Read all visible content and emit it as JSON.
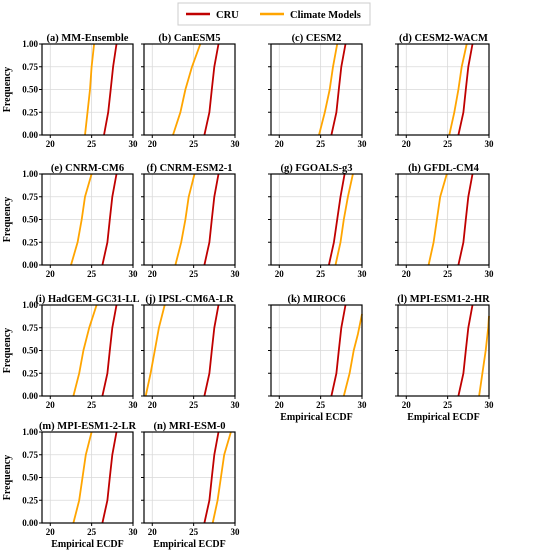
{
  "legend": {
    "entries": [
      {
        "label": "CRU",
        "color": "#c00000"
      },
      {
        "label": "Climate Models",
        "color": "#ffa500"
      }
    ]
  },
  "axes": {
    "ylabel": "Frequency",
    "xlabel": "Empirical ECDF",
    "xticks": [
      "20",
      "25",
      "30"
    ],
    "yticks": [
      "0.00",
      "0.25",
      "0.50",
      "0.75",
      "1.00"
    ]
  },
  "chart_data": [
    {
      "type": "line",
      "title": "(a) MM-Ensemble",
      "xlim": [
        19,
        30
      ],
      "ylim": [
        0,
        1
      ],
      "series": [
        {
          "name": "CRU",
          "x": [
            26.5,
            27.0,
            27.3,
            27.6,
            28.0
          ],
          "y": [
            0,
            0.25,
            0.5,
            0.75,
            1.0
          ]
        },
        {
          "name": "Climate Models",
          "x": [
            24.2,
            24.5,
            24.8,
            25.0,
            25.3
          ],
          "y": [
            0,
            0.25,
            0.5,
            0.75,
            1.0
          ]
        }
      ]
    },
    {
      "type": "line",
      "title": "(b) CanESM5",
      "xlim": [
        19,
        30
      ],
      "ylim": [
        0,
        1
      ],
      "series": [
        {
          "name": "CRU",
          "x": [
            26.3,
            26.9,
            27.2,
            27.5,
            28.0
          ],
          "y": [
            0,
            0.25,
            0.5,
            0.75,
            1.0
          ]
        },
        {
          "name": "Climate Models",
          "x": [
            22.5,
            23.4,
            24.0,
            24.8,
            25.8
          ],
          "y": [
            0,
            0.25,
            0.5,
            0.75,
            1.0
          ]
        }
      ]
    },
    {
      "type": "line",
      "title": "(c) CESM2",
      "xlim": [
        19,
        30
      ],
      "ylim": [
        0,
        1
      ],
      "series": [
        {
          "name": "CRU",
          "x": [
            26.3,
            26.9,
            27.2,
            27.5,
            28.0
          ],
          "y": [
            0,
            0.25,
            0.5,
            0.75,
            1.0
          ]
        },
        {
          "name": "Climate Models",
          "x": [
            24.8,
            25.5,
            26.1,
            26.5,
            27.0
          ],
          "y": [
            0,
            0.25,
            0.5,
            0.75,
            1.0
          ]
        }
      ]
    },
    {
      "type": "line",
      "title": "(d) CESM2-WACM",
      "xlim": [
        19,
        30
      ],
      "ylim": [
        0,
        1
      ],
      "series": [
        {
          "name": "CRU",
          "x": [
            26.3,
            26.9,
            27.2,
            27.5,
            28.0
          ],
          "y": [
            0,
            0.25,
            0.5,
            0.75,
            1.0
          ]
        },
        {
          "name": "Climate Models",
          "x": [
            25.2,
            25.8,
            26.3,
            26.7,
            27.3
          ],
          "y": [
            0,
            0.25,
            0.5,
            0.75,
            1.0
          ]
        }
      ]
    },
    {
      "type": "line",
      "title": "(e) CNRM-CM6",
      "xlim": [
        19,
        30
      ],
      "ylim": [
        0,
        1
      ],
      "series": [
        {
          "name": "CRU",
          "x": [
            26.3,
            26.9,
            27.2,
            27.5,
            28.0
          ],
          "y": [
            0,
            0.25,
            0.5,
            0.75,
            1.0
          ]
        },
        {
          "name": "Climate Models",
          "x": [
            22.5,
            23.3,
            23.8,
            24.2,
            25.0
          ],
          "y": [
            0,
            0.25,
            0.5,
            0.75,
            1.0
          ]
        }
      ]
    },
    {
      "type": "line",
      "title": "(f) CNRM-ESM2-1",
      "xlim": [
        19,
        30
      ],
      "ylim": [
        0,
        1
      ],
      "series": [
        {
          "name": "CRU",
          "x": [
            26.3,
            26.9,
            27.2,
            27.5,
            28.0
          ],
          "y": [
            0,
            0.25,
            0.5,
            0.75,
            1.0
          ]
        },
        {
          "name": "Climate Models",
          "x": [
            22.8,
            23.5,
            24.0,
            24.4,
            25.1
          ],
          "y": [
            0,
            0.25,
            0.5,
            0.75,
            1.0
          ]
        }
      ]
    },
    {
      "type": "line",
      "title": "(g) FGOALS-g3",
      "xlim": [
        19,
        30
      ],
      "ylim": [
        0,
        1
      ],
      "series": [
        {
          "name": "CRU",
          "x": [
            26.0,
            26.6,
            27.0,
            27.4,
            27.9
          ],
          "y": [
            0,
            0.25,
            0.5,
            0.75,
            1.0
          ]
        },
        {
          "name": "Climate Models",
          "x": [
            26.8,
            27.4,
            27.8,
            28.3,
            28.9
          ],
          "y": [
            0,
            0.25,
            0.5,
            0.75,
            1.0
          ]
        }
      ]
    },
    {
      "type": "line",
      "title": "(h) GFDL-CM4",
      "xlim": [
        19,
        30
      ],
      "ylim": [
        0,
        1
      ],
      "series": [
        {
          "name": "CRU",
          "x": [
            26.3,
            26.9,
            27.2,
            27.5,
            28.0
          ],
          "y": [
            0,
            0.25,
            0.5,
            0.75,
            1.0
          ]
        },
        {
          "name": "Climate Models",
          "x": [
            22.7,
            23.3,
            23.7,
            24.1,
            24.9
          ],
          "y": [
            0,
            0.25,
            0.5,
            0.75,
            1.0
          ]
        }
      ]
    },
    {
      "type": "line",
      "title": "(i) HadGEM-GC31-LL",
      "xlim": [
        19,
        30
      ],
      "ylim": [
        0,
        1
      ],
      "series": [
        {
          "name": "CRU",
          "x": [
            26.3,
            26.9,
            27.2,
            27.5,
            28.0
          ],
          "y": [
            0,
            0.25,
            0.5,
            0.75,
            1.0
          ]
        },
        {
          "name": "Climate Models",
          "x": [
            22.8,
            23.5,
            24.0,
            24.7,
            25.6
          ],
          "y": [
            0,
            0.25,
            0.5,
            0.75,
            1.0
          ]
        }
      ]
    },
    {
      "type": "line",
      "title": "(j) IPSL-CM6A-LR",
      "xlim": [
        19,
        30
      ],
      "ylim": [
        0,
        1
      ],
      "series": [
        {
          "name": "CRU",
          "x": [
            26.3,
            26.9,
            27.2,
            27.5,
            28.0
          ],
          "y": [
            0,
            0.25,
            0.5,
            0.75,
            1.0
          ]
        },
        {
          "name": "Climate Models",
          "x": [
            19.2,
            19.8,
            20.3,
            20.8,
            21.5
          ],
          "y": [
            0,
            0.25,
            0.5,
            0.75,
            1.0
          ]
        }
      ]
    },
    {
      "type": "line",
      "title": "(k) MIROC6",
      "xlim": [
        19,
        30
      ],
      "ylim": [
        0,
        1
      ],
      "series": [
        {
          "name": "CRU",
          "x": [
            26.3,
            26.9,
            27.2,
            27.5,
            28.0
          ],
          "y": [
            0,
            0.25,
            0.5,
            0.75,
            1.0
          ]
        },
        {
          "name": "Climate Models",
          "x": [
            27.8,
            28.5,
            29.0,
            29.5,
            30.0
          ],
          "y": [
            0,
            0.25,
            0.5,
            0.68,
            0.9
          ]
        }
      ]
    },
    {
      "type": "line",
      "title": "(l) MPI-ESM1-2-HR",
      "xlim": [
        19,
        30
      ],
      "ylim": [
        0,
        1
      ],
      "series": [
        {
          "name": "CRU",
          "x": [
            26.3,
            26.9,
            27.2,
            27.5,
            28.0
          ],
          "y": [
            0,
            0.25,
            0.5,
            0.75,
            1.0
          ]
        },
        {
          "name": "Climate Models",
          "x": [
            28.8,
            29.2,
            29.6,
            29.9,
            30.0
          ],
          "y": [
            0,
            0.25,
            0.5,
            0.75,
            0.88
          ]
        }
      ]
    },
    {
      "type": "line",
      "title": "(m) MPI-ESM1-2-LR",
      "xlim": [
        19,
        30
      ],
      "ylim": [
        0,
        1
      ],
      "series": [
        {
          "name": "CRU",
          "x": [
            26.3,
            26.9,
            27.2,
            27.5,
            28.0
          ],
          "y": [
            0,
            0.25,
            0.5,
            0.75,
            1.0
          ]
        },
        {
          "name": "Climate Models",
          "x": [
            22.8,
            23.5,
            23.9,
            24.3,
            25.0
          ],
          "y": [
            0,
            0.25,
            0.5,
            0.75,
            1.0
          ]
        }
      ]
    },
    {
      "type": "line",
      "title": "(n) MRI-ESM-0",
      "xlim": [
        19,
        30
      ],
      "ylim": [
        0,
        1
      ],
      "series": [
        {
          "name": "CRU",
          "x": [
            26.3,
            26.9,
            27.2,
            27.5,
            28.0
          ],
          "y": [
            0,
            0.25,
            0.5,
            0.75,
            1.0
          ]
        },
        {
          "name": "Climate Models",
          "x": [
            27.3,
            27.9,
            28.3,
            28.7,
            29.5
          ],
          "y": [
            0,
            0.25,
            0.5,
            0.75,
            1.0
          ]
        }
      ]
    }
  ]
}
